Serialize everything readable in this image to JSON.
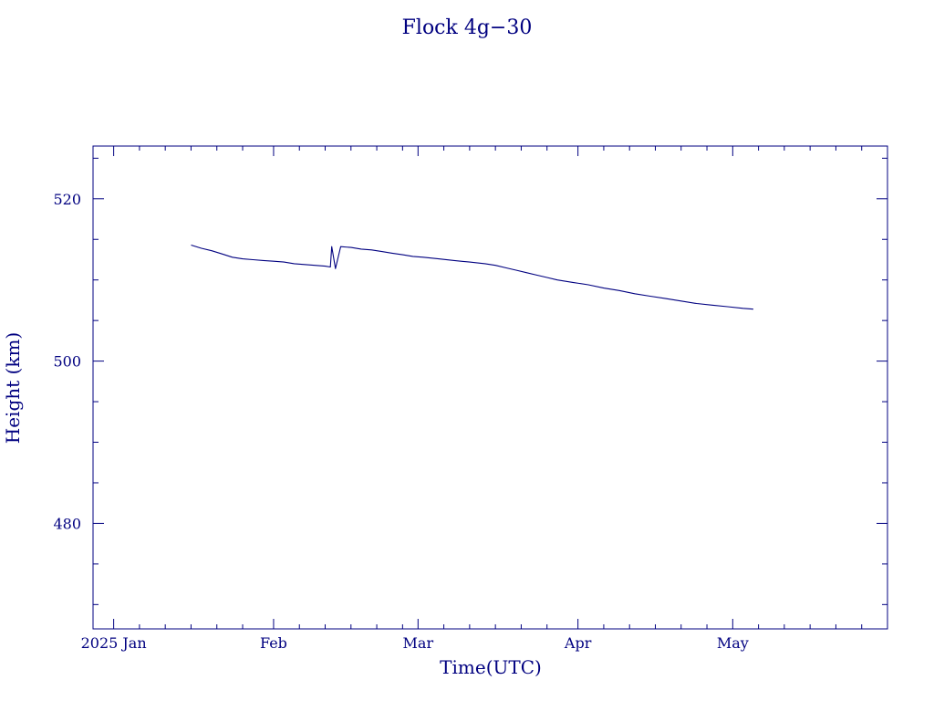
{
  "colors": {
    "foreground": "#000080",
    "background": "#ffffff"
  },
  "chart_data": {
    "type": "line",
    "title": "Flock 4g−30",
    "xlabel": "Time(UTC)",
    "ylabel": "Height (km)",
    "x_type": "date",
    "xlim": [
      "2024-12-28",
      "2025-05-31"
    ],
    "ylim": [
      467,
      526.5
    ],
    "x_ticks": [
      {
        "date": "2025-01-01",
        "label": "2025 Jan"
      },
      {
        "date": "2025-02-01",
        "label": "Feb"
      },
      {
        "date": "2025-03-01",
        "label": "Mar"
      },
      {
        "date": "2025-04-01",
        "label": "Apr"
      },
      {
        "date": "2025-05-01",
        "label": "May"
      }
    ],
    "y_ticks": [
      {
        "value": 480,
        "label": "480"
      },
      {
        "value": 500,
        "label": "500"
      },
      {
        "value": 520,
        "label": "520"
      }
    ],
    "grid": false,
    "series": [
      {
        "x": [
          "2025-01-16",
          "2025-01-18",
          "2025-01-20",
          "2025-01-22",
          "2025-01-24",
          "2025-01-26",
          "2025-01-28",
          "2025-01-30",
          "2025-02-01",
          "2025-02-03",
          "2025-02-05",
          "2025-02-07",
          "2025-02-09",
          "2025-02-11",
          "2025-02-12",
          "2025-02-12",
          "2025-02-13",
          "2025-02-14",
          "2025-02-16",
          "2025-02-18",
          "2025-02-20",
          "2025-02-22",
          "2025-02-24",
          "2025-02-26",
          "2025-02-28",
          "2025-03-02",
          "2025-03-05",
          "2025-03-08",
          "2025-03-11",
          "2025-03-14",
          "2025-03-16",
          "2025-03-18",
          "2025-03-20",
          "2025-03-22",
          "2025-03-24",
          "2025-03-26",
          "2025-03-28",
          "2025-03-31",
          "2025-04-03",
          "2025-04-06",
          "2025-04-09",
          "2025-04-12",
          "2025-04-15",
          "2025-04-18",
          "2025-04-21",
          "2025-04-24",
          "2025-04-27",
          "2025-04-30",
          "2025-05-03",
          "2025-05-05"
        ],
        "y": [
          514.3,
          513.9,
          513.6,
          513.2,
          512.8,
          512.6,
          512.5,
          512.4,
          512.3,
          512.2,
          512.0,
          511.9,
          511.8,
          511.7,
          511.6,
          514.1,
          511.4,
          514.1,
          514.0,
          513.8,
          513.7,
          513.5,
          513.3,
          513.1,
          512.9,
          512.8,
          512.6,
          512.4,
          512.2,
          512.0,
          511.8,
          511.5,
          511.2,
          510.9,
          510.6,
          510.3,
          510.0,
          509.7,
          509.4,
          509.0,
          508.7,
          508.3,
          508.0,
          507.7,
          507.4,
          507.1,
          506.9,
          506.7,
          506.5,
          506.4
        ]
      }
    ]
  }
}
